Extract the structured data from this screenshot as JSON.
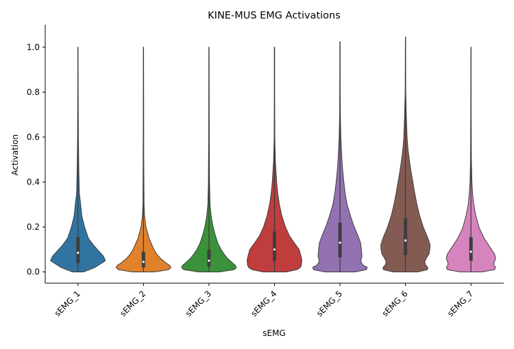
{
  "chart_data": {
    "type": "violin",
    "title": "KINE-MUS EMG Activations",
    "xlabel": "sEMG",
    "ylabel": "Activation",
    "ylim": [
      -0.05,
      1.1
    ],
    "yticks": [
      0.0,
      0.2,
      0.4,
      0.6,
      0.8,
      1.0
    ],
    "ytick_labels": [
      "0.0",
      "0.2",
      "0.4",
      "0.6",
      "0.8",
      "1.0"
    ],
    "grid": false,
    "categories": [
      "sEMG_1",
      "sEMG_2",
      "sEMG_3",
      "sEMG_4",
      "sEMG_5",
      "sEMG_6",
      "sEMG_7"
    ],
    "series": [
      {
        "category": "sEMG_1",
        "color": "#3274a1",
        "min": 0.0,
        "max": 1.0,
        "q1": 0.04,
        "median": 0.085,
        "q3": 0.155,
        "density": [
          [
            0.0,
            0.2
          ],
          [
            0.01,
            0.42
          ],
          [
            0.02,
            0.62
          ],
          [
            0.04,
            0.88
          ],
          [
            0.05,
            1.0
          ],
          [
            0.07,
            0.93
          ],
          [
            0.09,
            0.78
          ],
          [
            0.12,
            0.56
          ],
          [
            0.15,
            0.38
          ],
          [
            0.2,
            0.24
          ],
          [
            0.25,
            0.14
          ],
          [
            0.3,
            0.1
          ],
          [
            0.35,
            0.05
          ],
          [
            0.45,
            0.03
          ],
          [
            0.6,
            0.015
          ],
          [
            0.8,
            0.008
          ],
          [
            1.0,
            0.004
          ]
        ]
      },
      {
        "category": "sEMG_2",
        "color": "#e1812c",
        "min": 0.0,
        "max": 1.0,
        "q1": 0.02,
        "median": 0.045,
        "q3": 0.09,
        "density": [
          [
            0.0,
            0.4
          ],
          [
            0.01,
            0.92
          ],
          [
            0.02,
            1.0
          ],
          [
            0.03,
            0.95
          ],
          [
            0.04,
            0.82
          ],
          [
            0.06,
            0.62
          ],
          [
            0.08,
            0.48
          ],
          [
            0.1,
            0.38
          ],
          [
            0.13,
            0.27
          ],
          [
            0.15,
            0.2
          ],
          [
            0.2,
            0.09
          ],
          [
            0.25,
            0.04
          ],
          [
            0.3,
            0.02
          ],
          [
            0.5,
            0.012
          ],
          [
            0.7,
            0.008
          ],
          [
            1.0,
            0.004
          ]
        ]
      },
      {
        "category": "sEMG_3",
        "color": "#3a923a",
        "min": 0.0,
        "max": 1.0,
        "q1": 0.025,
        "median": 0.05,
        "q3": 0.1,
        "density": [
          [
            0.0,
            0.38
          ],
          [
            0.01,
            0.92
          ],
          [
            0.02,
            1.0
          ],
          [
            0.03,
            0.96
          ],
          [
            0.04,
            0.86
          ],
          [
            0.06,
            0.68
          ],
          [
            0.08,
            0.55
          ],
          [
            0.1,
            0.44
          ],
          [
            0.13,
            0.32
          ],
          [
            0.16,
            0.24
          ],
          [
            0.2,
            0.15
          ],
          [
            0.25,
            0.08
          ],
          [
            0.3,
            0.04
          ],
          [
            0.4,
            0.02
          ],
          [
            0.6,
            0.01
          ],
          [
            1.0,
            0.004
          ]
        ]
      },
      {
        "category": "sEMG_4",
        "color": "#c03d3e",
        "min": 0.0,
        "max": 1.0,
        "q1": 0.05,
        "median": 0.1,
        "q3": 0.18,
        "density": [
          [
            0.0,
            0.42
          ],
          [
            0.01,
            0.82
          ],
          [
            0.02,
            0.94
          ],
          [
            0.03,
            0.98
          ],
          [
            0.05,
            1.0
          ],
          [
            0.07,
            0.97
          ],
          [
            0.1,
            0.9
          ],
          [
            0.13,
            0.72
          ],
          [
            0.16,
            0.55
          ],
          [
            0.2,
            0.4
          ],
          [
            0.25,
            0.27
          ],
          [
            0.3,
            0.18
          ],
          [
            0.35,
            0.12
          ],
          [
            0.4,
            0.08
          ],
          [
            0.5,
            0.03
          ],
          [
            0.6,
            0.012
          ],
          [
            0.8,
            0.006
          ],
          [
            1.0,
            0.004
          ]
        ]
      },
      {
        "category": "sEMG_5",
        "color": "#9372b2",
        "min": 0.0,
        "max": 1.025,
        "q1": 0.065,
        "median": 0.13,
        "q3": 0.22,
        "density": [
          [
            0.0,
            0.55
          ],
          [
            0.01,
            0.96
          ],
          [
            0.02,
            1.0
          ],
          [
            0.03,
            0.85
          ],
          [
            0.04,
            0.78
          ],
          [
            0.05,
            0.76
          ],
          [
            0.07,
            0.8
          ],
          [
            0.1,
            0.78
          ],
          [
            0.13,
            0.75
          ],
          [
            0.16,
            0.66
          ],
          [
            0.2,
            0.52
          ],
          [
            0.25,
            0.38
          ],
          [
            0.3,
            0.26
          ],
          [
            0.35,
            0.19
          ],
          [
            0.4,
            0.14
          ],
          [
            0.45,
            0.1
          ],
          [
            0.5,
            0.07
          ],
          [
            0.6,
            0.03
          ],
          [
            0.7,
            0.012
          ],
          [
            0.85,
            0.006
          ],
          [
            1.025,
            0.004
          ]
        ]
      },
      {
        "category": "sEMG_6",
        "color": "#845b53",
        "min": 0.0,
        "max": 1.045,
        "q1": 0.075,
        "median": 0.14,
        "q3": 0.24,
        "density": [
          [
            0.0,
            0.45
          ],
          [
            0.01,
            0.8
          ],
          [
            0.02,
            0.82
          ],
          [
            0.03,
            0.74
          ],
          [
            0.045,
            0.7
          ],
          [
            0.06,
            0.76
          ],
          [
            0.08,
            0.86
          ],
          [
            0.1,
            0.89
          ],
          [
            0.12,
            0.9
          ],
          [
            0.15,
            0.82
          ],
          [
            0.2,
            0.65
          ],
          [
            0.25,
            0.52
          ],
          [
            0.3,
            0.42
          ],
          [
            0.35,
            0.34
          ],
          [
            0.4,
            0.27
          ],
          [
            0.45,
            0.2
          ],
          [
            0.5,
            0.14
          ],
          [
            0.55,
            0.09
          ],
          [
            0.6,
            0.06
          ],
          [
            0.7,
            0.03
          ],
          [
            0.8,
            0.012
          ],
          [
            1.045,
            0.004
          ]
        ]
      },
      {
        "category": "sEMG_7",
        "color": "#d684bd",
        "min": 0.0,
        "max": 0.995,
        "q1": 0.05,
        "median": 0.09,
        "q3": 0.155,
        "density": [
          [
            0.0,
            0.4
          ],
          [
            0.01,
            0.86
          ],
          [
            0.02,
            0.9
          ],
          [
            0.03,
            0.84
          ],
          [
            0.04,
            0.84
          ],
          [
            0.06,
            0.9
          ],
          [
            0.08,
            0.86
          ],
          [
            0.1,
            0.75
          ],
          [
            0.12,
            0.64
          ],
          [
            0.15,
            0.48
          ],
          [
            0.18,
            0.36
          ],
          [
            0.2,
            0.29
          ],
          [
            0.25,
            0.18
          ],
          [
            0.3,
            0.1
          ],
          [
            0.35,
            0.06
          ],
          [
            0.4,
            0.035
          ],
          [
            0.5,
            0.015
          ],
          [
            0.7,
            0.008
          ],
          [
            1.0,
            0.004
          ]
        ]
      }
    ]
  }
}
